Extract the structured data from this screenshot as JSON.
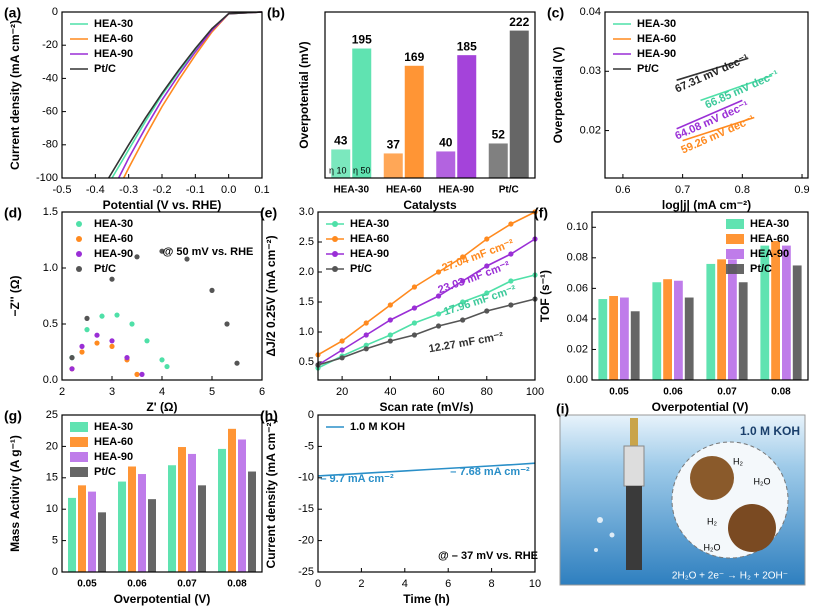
{
  "chart_data": [
    {
      "type": "line",
      "label": "(a)",
      "xlabel": "Potential (V vs. RHE)",
      "ylabel": "Current density (mA cm⁻²)",
      "xlim": [
        -0.5,
        0.1
      ],
      "ylim": [
        -100,
        0
      ],
      "xticks": [
        -0.5,
        -0.4,
        -0.3,
        -0.2,
        -0.1,
        {
          "value": 0,
          "label": "0.0"
        },
        0.1
      ],
      "yticks": [
        -100,
        -80,
        -60,
        -40,
        -20,
        0
      ],
      "legend": "top-left",
      "series": [
        {
          "name": "HEA-30",
          "color": "#4fe0a8",
          "x": [
            -0.35,
            -0.3,
            -0.25,
            -0.2,
            -0.15,
            -0.1,
            -0.05,
            0,
            0.1
          ],
          "values": [
            -100,
            -83,
            -66,
            -50,
            -36,
            -23,
            -11,
            -1,
            0
          ]
        },
        {
          "name": "HEA-60",
          "color": "#ff8a1f",
          "x": [
            -0.315,
            -0.3,
            -0.25,
            -0.2,
            -0.15,
            -0.1,
            -0.05,
            0,
            0.1
          ],
          "values": [
            -100,
            -94,
            -75,
            -57,
            -41,
            -26,
            -12,
            -1,
            0
          ]
        },
        {
          "name": "HEA-90",
          "color": "#9a2fd6",
          "x": [
            -0.33,
            -0.3,
            -0.25,
            -0.2,
            -0.15,
            -0.1,
            -0.05,
            0,
            0.1
          ],
          "values": [
            -100,
            -88,
            -70,
            -53,
            -38,
            -24,
            -11,
            -1,
            0
          ]
        },
        {
          "name": "Pt/C",
          "color": "#333333",
          "x": [
            -0.36,
            -0.3,
            -0.25,
            -0.2,
            -0.15,
            -0.1,
            -0.05,
            0,
            0.1
          ],
          "values": [
            -100,
            -80,
            -64,
            -49,
            -35,
            -22,
            -10,
            -1,
            0
          ]
        }
      ]
    },
    {
      "type": "bar",
      "label": "(b)",
      "xlabel": "Catalysts",
      "ylabel": "Overpotential (mV)",
      "categories": [
        "HEA-30",
        "HEA-60",
        "HEA-90",
        "Pt/C"
      ],
      "colors": [
        "#4fe0a8",
        "#ff8a1f",
        "#9a2fd6",
        "#555555"
      ],
      "ylim": [
        0,
        250
      ],
      "legend": "bottom-left",
      "data_labels": true,
      "series": [
        {
          "name": "η 10",
          "values": [
            43,
            37,
            40,
            52
          ]
        },
        {
          "name": "η 50",
          "values": [
            195,
            169,
            185,
            222
          ]
        }
      ]
    },
    {
      "type": "line",
      "label": "(c)",
      "xlabel": "log|j| (mA cm⁻²)",
      "ylabel": "Overpotential (V)",
      "xlim": [
        0.57,
        0.91
      ],
      "ylim": [
        0.012,
        0.04
      ],
      "xticks": [
        0.6,
        0.7,
        0.8,
        0.9
      ],
      "yticks": [
        0.02,
        0.03,
        0.04
      ],
      "legend": "top-left",
      "series": [
        {
          "name": "HEA-30",
          "color": "#4fe0a8",
          "x": [
            0.73,
            0.85
          ],
          "values": [
            0.0251,
            0.0293
          ]
        },
        {
          "name": "HEA-60",
          "color": "#ff8a1f",
          "x": [
            0.7,
            0.82
          ],
          "values": [
            0.0183,
            0.0222
          ]
        },
        {
          "name": "HEA-90",
          "color": "#9a2fd6",
          "x": [
            0.69,
            0.8
          ],
          "values": [
            0.0203,
            0.0251
          ]
        },
        {
          "name": "Pt/C",
          "color": "#333333",
          "x": [
            0.69,
            0.81
          ],
          "values": [
            0.0285,
            0.0322
          ]
        }
      ],
      "annotations": [
        {
          "text": "67.31 mV dec⁻¹",
          "color": "#222222"
        },
        {
          "text": "66.85 mV dec⁻¹",
          "color": "#3cc99a"
        },
        {
          "text": "64.08 mV dec⁻¹",
          "color": "#9a2fd6"
        },
        {
          "text": "59.26 mV dec⁻¹",
          "color": "#ff8a1f"
        }
      ]
    },
    {
      "type": "scatter",
      "label": "(d)",
      "xlabel": "Z' (Ω)",
      "ylabel": "−Z'' (Ω)",
      "xlim": [
        2,
        6
      ],
      "ylim": [
        0,
        1.5
      ],
      "xticks": [
        2,
        3,
        4,
        5,
        6
      ],
      "yticks": [
        {
          "value": 0,
          "label": "0.0"
        },
        0.5,
        {
          "value": 1,
          "label": "1.0"
        },
        1.5
      ],
      "legend": "top-left",
      "series": [
        {
          "name": "HEA-30",
          "color": "#4fe0a8",
          "x": [
            2.2,
            2.5,
            2.8,
            3.1,
            3.4,
            3.7,
            4.0,
            4.1
          ],
          "values": [
            0.2,
            0.45,
            0.57,
            0.58,
            0.5,
            0.35,
            0.18,
            0.12
          ]
        },
        {
          "name": "HEA-60",
          "color": "#ff8a1f",
          "x": [
            2.2,
            2.4,
            2.7,
            3.0,
            3.3,
            3.5
          ],
          "values": [
            0.1,
            0.25,
            0.33,
            0.3,
            0.18,
            0.05
          ]
        },
        {
          "name": "HEA-90",
          "color": "#9a2fd6",
          "x": [
            2.2,
            2.4,
            2.7,
            3.0,
            3.3,
            3.6
          ],
          "values": [
            0.1,
            0.3,
            0.4,
            0.35,
            0.2,
            0.05
          ]
        },
        {
          "name": "Pt/C",
          "color": "#555555",
          "x": [
            2.2,
            2.5,
            3.0,
            3.5,
            4.0,
            4.5,
            5.0,
            5.3,
            5.5
          ],
          "values": [
            0.2,
            0.55,
            0.9,
            1.1,
            1.15,
            1.08,
            0.8,
            0.5,
            0.15
          ]
        }
      ],
      "annotations": [
        {
          "text": "@ 50 mV vs. RHE",
          "color": "#000000"
        }
      ]
    },
    {
      "type": "line",
      "markers": true,
      "label": "(e)",
      "xlabel": "Scan rate (mV/s)",
      "ylabel": "ΔJ/2 0.25V (mA cm⁻²)",
      "xlim": [
        10,
        100
      ],
      "ylim": [
        0.2,
        3.0
      ],
      "xticks": [
        20,
        40,
        60,
        80,
        100
      ],
      "yticks": [
        0.5,
        {
          "value": 1,
          "label": "1.0"
        },
        1.5,
        {
          "value": 2,
          "label": "2.0"
        },
        2.5,
        {
          "value": 3,
          "label": "3.0"
        }
      ],
      "legend": "top-left",
      "x": [
        10,
        20,
        30,
        40,
        50,
        60,
        70,
        80,
        90,
        100
      ],
      "series": [
        {
          "name": "HEA-30",
          "color": "#4fe0a8",
          "values": [
            0.4,
            0.6,
            0.78,
            0.95,
            1.15,
            1.3,
            1.5,
            1.65,
            1.85,
            1.95
          ]
        },
        {
          "name": "HEA-60",
          "color": "#ff8a1f",
          "values": [
            0.62,
            0.85,
            1.15,
            1.45,
            1.75,
            2.0,
            2.25,
            2.55,
            2.8,
            3.0
          ]
        },
        {
          "name": "HEA-90",
          "color": "#9a2fd6",
          "values": [
            0.45,
            0.7,
            0.95,
            1.2,
            1.4,
            1.6,
            1.85,
            2.1,
            2.3,
            2.55
          ]
        },
        {
          "name": "Pt/C",
          "color": "#555555",
          "values": [
            0.45,
            0.57,
            0.72,
            0.85,
            0.95,
            1.1,
            1.2,
            1.35,
            1.45,
            1.55
          ]
        }
      ],
      "annotations": [
        {
          "text": "27.04 mF cm⁻²",
          "color": "#ff8a1f"
        },
        {
          "text": "23.03 mF cm⁻²",
          "color": "#9a2fd6"
        },
        {
          "text": "17.96 mF cm⁻²",
          "color": "#3cc99a"
        },
        {
          "text": "12.27 mF cm⁻²",
          "color": "#333333"
        }
      ]
    },
    {
      "type": "bar",
      "label": "(f)",
      "xlabel": "Overpotential (V)",
      "ylabel": "TOF (s⁻¹)",
      "categories": [
        "0.05",
        "0.06",
        "0.07",
        "0.08"
      ],
      "ylim": [
        0,
        0.11
      ],
      "yticks": [
        {
          "value": 0,
          "label": "0.00"
        },
        0.02,
        0.04,
        0.06,
        0.08,
        {
          "value": 0.1,
          "label": "0.10"
        }
      ],
      "legend": "top-right",
      "series": [
        {
          "name": "HEA-30",
          "color": "#4fe0a8",
          "values": [
            0.053,
            0.064,
            0.076,
            0.088
          ]
        },
        {
          "name": "HEA-60",
          "color": "#ff8a1f",
          "values": [
            0.055,
            0.066,
            0.079,
            0.091
          ]
        },
        {
          "name": "HEA-90",
          "color": "#b86ee8",
          "values": [
            0.054,
            0.065,
            0.079,
            0.088
          ]
        },
        {
          "name": "Pt/C",
          "color": "#555555",
          "values": [
            0.045,
            0.054,
            0.064,
            0.075
          ]
        }
      ]
    },
    {
      "type": "bar",
      "label": "(g)",
      "xlabel": "Overpotential (V)",
      "ylabel": "Mass Activity (A g⁻¹)",
      "categories": [
        "0.05",
        "0.06",
        "0.07",
        "0.08"
      ],
      "ylim": [
        0,
        25
      ],
      "yticks": [
        0,
        5,
        10,
        15,
        20,
        25
      ],
      "legend": "top-left",
      "series": [
        {
          "name": "HEA-30",
          "color": "#4fe0a8",
          "values": [
            11.8,
            14.4,
            17.0,
            19.6
          ]
        },
        {
          "name": "HEA-60",
          "color": "#ff8a1f",
          "values": [
            13.8,
            16.8,
            19.9,
            22.8
          ]
        },
        {
          "name": "HEA-90",
          "color": "#b86ee8",
          "values": [
            12.8,
            15.6,
            18.8,
            21.1
          ]
        },
        {
          "name": "Pt/C",
          "color": "#555555",
          "values": [
            9.5,
            11.6,
            13.8,
            16.0
          ]
        }
      ]
    },
    {
      "type": "line",
      "label": "(h)",
      "xlabel": "Time (h)",
      "ylabel": "Current density (mA cm⁻²)",
      "xlim": [
        0,
        10
      ],
      "ylim": [
        -25,
        0
      ],
      "xticks": [
        0,
        2,
        4,
        6,
        8,
        10
      ],
      "yticks": [
        -25,
        -20,
        -15,
        -10,
        -5,
        0
      ],
      "legend": "top-left",
      "x": [
        0,
        1,
        2,
        3,
        4,
        5,
        6,
        7,
        8,
        9,
        10
      ],
      "series": [
        {
          "name": "1.0 M KOH",
          "color": "#2a8fc8",
          "values": [
            -9.7,
            -9.5,
            -9.3,
            -9.1,
            -8.9,
            -8.7,
            -8.5,
            -8.3,
            -8.1,
            -7.9,
            -7.68
          ]
        }
      ],
      "annotations": [
        {
          "text": "– 9.7 mA cm⁻²",
          "color": "#2a8fc8"
        },
        {
          "text": "– 7.68 mA cm⁻²",
          "color": "#2a8fc8"
        },
        {
          "text": "@ – 37 mV vs. RHE",
          "color": "#000000"
        }
      ]
    }
  ],
  "illustration": {
    "label": "(i)",
    "electrolyte": "1.0 M KOH",
    "species": [
      "H₂",
      "H₂O",
      "H₂",
      "H₂O"
    ],
    "equation": "2H₂O + 2e⁻ → H₂ + 2OH⁻"
  }
}
